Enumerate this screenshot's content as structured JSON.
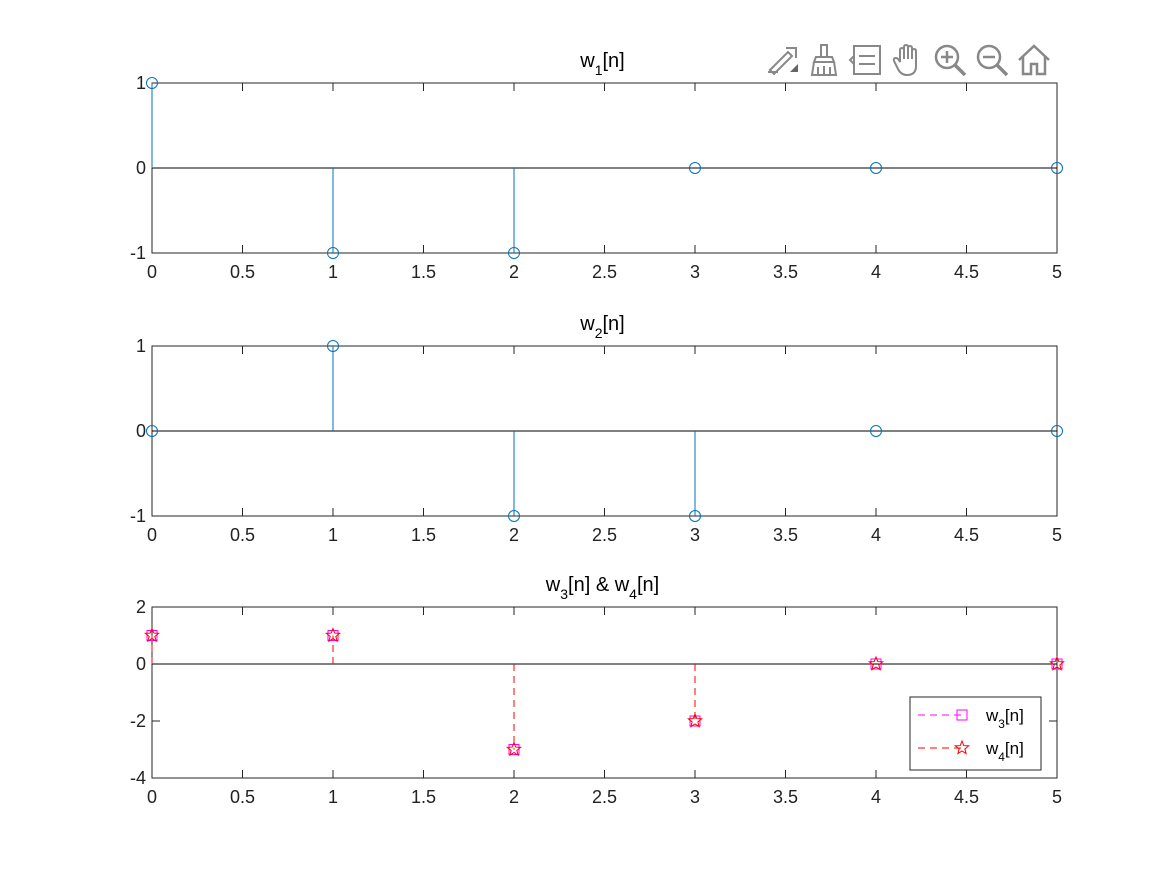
{
  "toolbar": [
    {
      "name": "export-icon"
    },
    {
      "name": "brush-icon"
    },
    {
      "name": "datatip-icon"
    },
    {
      "name": "pan-hand-icon"
    },
    {
      "name": "zoom-in-icon"
    },
    {
      "name": "zoom-out-icon"
    },
    {
      "name": "home-icon"
    }
  ],
  "chart_data": [
    {
      "type": "stem",
      "title": {
        "base": "w",
        "sub": "1",
        "rest": "[n]"
      },
      "x": [
        0,
        1,
        2,
        3,
        4,
        5
      ],
      "xlim": [
        0,
        5
      ],
      "xticks": [
        "0",
        "0.5",
        "1",
        "1.5",
        "2",
        "2.5",
        "3",
        "3.5",
        "4",
        "4.5",
        "5"
      ],
      "ylim": [
        -1,
        1
      ],
      "yticks": [
        "-1",
        "0",
        "1"
      ],
      "series": [
        {
          "values": [
            1,
            -1,
            -1,
            0,
            0,
            0
          ],
          "color": "#0072BD",
          "marker": "circle",
          "line": "solid"
        }
      ]
    },
    {
      "type": "stem",
      "title": {
        "base": "w",
        "sub": "2",
        "rest": "[n]"
      },
      "x": [
        0,
        1,
        2,
        3,
        4,
        5
      ],
      "xlim": [
        0,
        5
      ],
      "xticks": [
        "0",
        "0.5",
        "1",
        "1.5",
        "2",
        "2.5",
        "3",
        "3.5",
        "4",
        "4.5",
        "5"
      ],
      "ylim": [
        -1,
        1
      ],
      "yticks": [
        "-1",
        "0",
        "1"
      ],
      "series": [
        {
          "values": [
            0,
            1,
            -1,
            -1,
            0,
            0
          ],
          "color": "#0072BD",
          "marker": "circle",
          "line": "solid"
        }
      ]
    },
    {
      "type": "stem",
      "title": {
        "base": "w",
        "sub": "3",
        "rest": "[n] & w",
        "sub2": "4",
        "rest2": "[n]"
      },
      "x": [
        0,
        1,
        2,
        3,
        4,
        5
      ],
      "xlim": [
        0,
        5
      ],
      "xticks": [
        "0",
        "0.5",
        "1",
        "1.5",
        "2",
        "2.5",
        "3",
        "3.5",
        "4",
        "4.5",
        "5"
      ],
      "ylim": [
        -4,
        2
      ],
      "yticks": [
        "-4",
        "-2",
        "0",
        "2"
      ],
      "legend_position": "bottom-right",
      "series": [
        {
          "name": {
            "base": "w",
            "sub": "3",
            "rest": "[n]"
          },
          "values": [
            1,
            1,
            -3,
            -2,
            0,
            0
          ],
          "color": "#FF00FF",
          "marker": "square",
          "line": "dashed"
        },
        {
          "name": {
            "base": "w",
            "sub": "4",
            "rest": "[n]"
          },
          "values": [
            1,
            1,
            -3,
            -2,
            0,
            0
          ],
          "color": "#FF0000",
          "marker": "star",
          "line": "dashed"
        }
      ]
    }
  ]
}
